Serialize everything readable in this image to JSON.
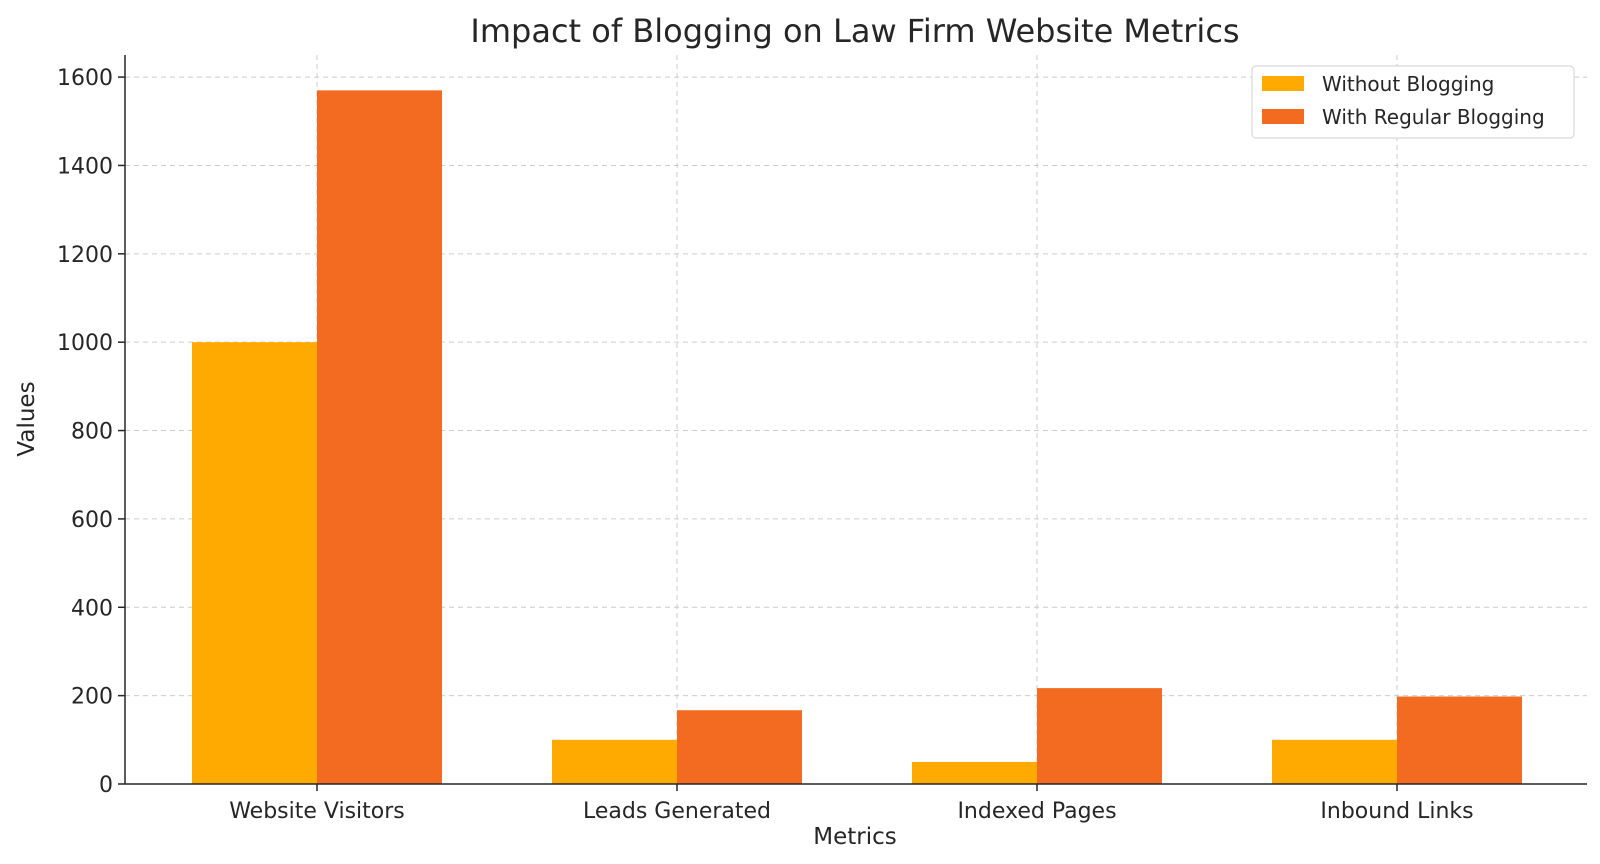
{
  "chart_data": {
    "type": "bar",
    "title": "Impact of Blogging on Law Firm Website Metrics",
    "xlabel": "Metrics",
    "ylabel": "Values",
    "categories": [
      "Website Visitors",
      "Leads Generated",
      "Indexed Pages",
      "Inbound Links"
    ],
    "series": [
      {
        "name": "Without Blogging",
        "color": "#FFAA00",
        "values": [
          1000,
          100,
          50,
          100
        ]
      },
      {
        "name": "With Regular Blogging",
        "color": "#F26B21",
        "values": [
          1570,
          167,
          217,
          198
        ]
      }
    ],
    "ylim": [
      0,
      1650
    ],
    "yticks": [
      0,
      200,
      400,
      600,
      800,
      1000,
      1200,
      1400,
      1600
    ],
    "grid": true,
    "legend_position": "top-right"
  }
}
